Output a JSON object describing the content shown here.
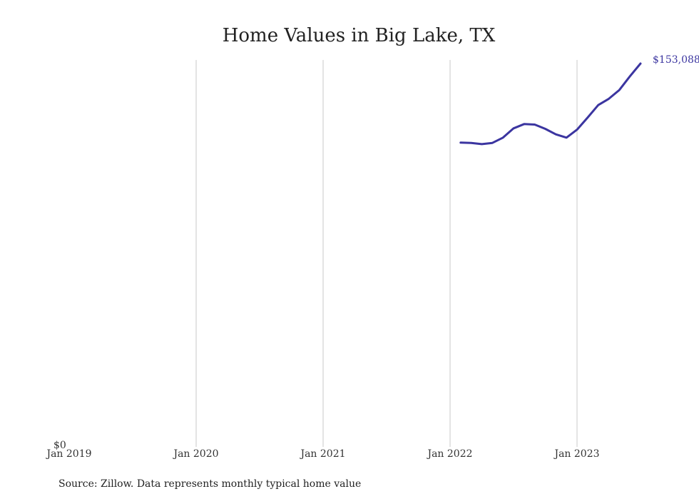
{
  "chart_data": {
    "type": "line",
    "title": "Home Values in Big Lake, TX",
    "source": "Source: Zillow. Data represents monthly typical home value",
    "x_ticks": [
      "Jan 2019",
      "Jan 2020",
      "Jan 2021",
      "Jan 2022",
      "Jan 2023"
    ],
    "y_tick_label": "$0",
    "ylim": [
      0,
      153088
    ],
    "xlim": [
      "2019-01",
      "2023-07"
    ],
    "grid": "vertical",
    "line_color": "#3b35a0",
    "end_label": "$153,088",
    "series": [
      {
        "x": [
          "2022-02",
          "2022-03",
          "2022-04",
          "2022-05",
          "2022-06",
          "2022-07",
          "2022-08",
          "2022-09",
          "2022-10",
          "2022-11",
          "2022-12",
          "2023-01",
          "2023-02",
          "2023-03",
          "2023-04",
          "2023-05",
          "2023-06",
          "2023-07"
        ],
        "values": [
          121500,
          121400,
          120900,
          121400,
          123500,
          127200,
          128900,
          128700,
          127000,
          124800,
          123500,
          126700,
          131500,
          136500,
          139000,
          142500,
          148000,
          153088
        ]
      }
    ]
  }
}
